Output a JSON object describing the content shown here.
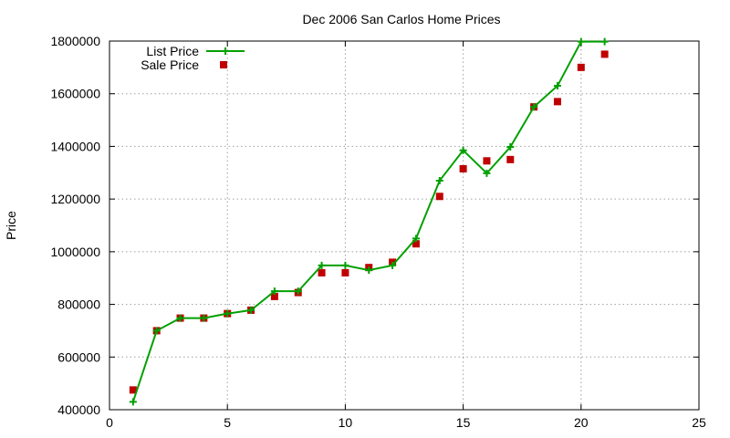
{
  "chart_data": {
    "type": "line",
    "title": "Dec 2006 San Carlos Home Prices",
    "xlabel": "",
    "ylabel": "Price",
    "xlim": [
      0,
      25
    ],
    "ylim": [
      400000,
      1800000
    ],
    "x_ticks": [
      "0",
      "5",
      "10",
      "15",
      "20",
      "25"
    ],
    "y_ticks": [
      "400000",
      "600000",
      "800000",
      "1000000",
      "1200000",
      "1400000",
      "1600000",
      "1800000"
    ],
    "grid": true,
    "legend_position": "top-left",
    "series": [
      {
        "name": "List Price",
        "style": "line-with-plus-markers",
        "color": "#00a000",
        "x": [
          1,
          2,
          3,
          4,
          5,
          6,
          7,
          8,
          9,
          10,
          11,
          12,
          13,
          14,
          15,
          16,
          17,
          18,
          19,
          20,
          21
        ],
        "y": [
          430000,
          700000,
          748000,
          748000,
          765000,
          778000,
          850000,
          850000,
          948000,
          948000,
          930000,
          948000,
          1050000,
          1270000,
          1385000,
          1298000,
          1398000,
          1550000,
          1630000,
          1798000,
          1798000
        ]
      },
      {
        "name": "Sale Price",
        "style": "square-markers",
        "color": "#c00000",
        "x": [
          1,
          2,
          3,
          4,
          5,
          6,
          7,
          8,
          9,
          10,
          11,
          12,
          13,
          14,
          15,
          16,
          17,
          18,
          19,
          20,
          21
        ],
        "y": [
          475000,
          700000,
          748000,
          748000,
          765000,
          778000,
          830000,
          845000,
          920000,
          920000,
          940000,
          960000,
          1030000,
          1210000,
          1315000,
          1345000,
          1350000,
          1550000,
          1570000,
          1700000,
          1750000
        ]
      }
    ]
  }
}
